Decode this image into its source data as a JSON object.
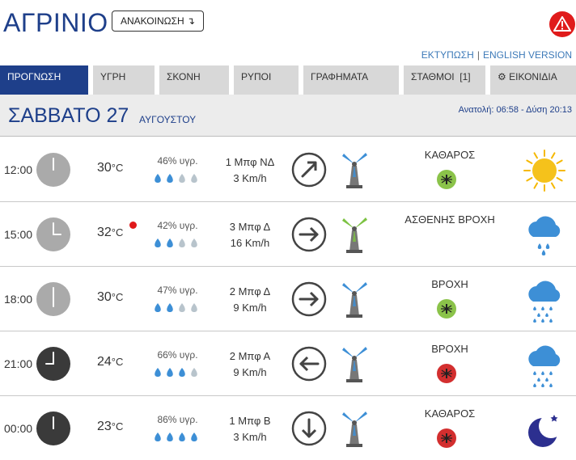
{
  "header": {
    "city": "ΑΓΡΙΝΙΟ",
    "announce_button": "ΑΝΑΚΟΙΝΩΣΗ ↴",
    "print_link": "ΕΚΤΥΠΩΣΗ",
    "link_separator": "|",
    "english_link": "ENGLISH VERSION"
  },
  "tabs": [
    {
      "label": "ΠΡΟΓΝΩΣΗ",
      "active": true
    },
    {
      "label": "ΥΓΡΗ",
      "active": false
    },
    {
      "label": "ΣΚΟΝΗ",
      "active": false
    },
    {
      "label": "ΡΥΠΟΙ",
      "active": false
    },
    {
      "label": "ΓΡΑΦΗΜΑΤΑ",
      "active": false
    },
    {
      "label": "ΣΤΑΘΜΟΙ  [1]",
      "active": false
    },
    {
      "label": "ΕΙΚΟΝΙΔΙΑ",
      "active": false,
      "icon": "gear-icon"
    }
  ],
  "day": {
    "name": "ΣΑΒΒΑΤΟ 27",
    "month": "ΑΥΓΟΥΣΤΟΥ",
    "sun": "Ανατολή: 06:58 - Δύση 20:13"
  },
  "colors": {
    "brand": "#1e3f8a",
    "tab_inactive": "#d8d8d8",
    "link": "#3d7ab8",
    "drop_filled": "#3d8fd6",
    "drop_empty": "#b8c4cc",
    "mosquito_low": "#8bc34a",
    "mosquito_high": "#d32f2f",
    "alert_red": "#e01b1b"
  },
  "forecast": [
    {
      "time": "12:00",
      "clock_hour": 12,
      "clock_dark": false,
      "temp": "30",
      "unit": "°C",
      "hot_dot": false,
      "humidity": "46% υγρ.",
      "drops_filled": 2,
      "wind_bft": "1 Μπφ ΝΔ",
      "wind_kmh": "3 Km/h",
      "wind_arrow": "arrow-up-right-icon",
      "turbine": "turbine-blue-icon",
      "condition": "ΚΑΘΑΡΟΣ",
      "mosquito": "low",
      "weather_icon": "sun-icon"
    },
    {
      "time": "15:00",
      "clock_hour": 3,
      "clock_dark": false,
      "temp": "32",
      "unit": "°C",
      "hot_dot": true,
      "humidity": "42% υγρ.",
      "drops_filled": 2,
      "wind_bft": "3 Μπφ Δ",
      "wind_kmh": "16 Km/h",
      "wind_arrow": "arrow-right-icon",
      "turbine": "turbine-green-icon",
      "condition": "ΑΣΘΕΝΗΣ ΒΡΟΧΗ",
      "mosquito": "none",
      "weather_icon": "light-rain-icon"
    },
    {
      "time": "18:00",
      "clock_hour": 6,
      "clock_dark": false,
      "temp": "30",
      "unit": "°C",
      "hot_dot": false,
      "humidity": "47% υγρ.",
      "drops_filled": 2,
      "wind_bft": "2 Μπφ Δ",
      "wind_kmh": "9 Km/h",
      "wind_arrow": "arrow-right-icon",
      "turbine": "turbine-blue-icon",
      "condition": "ΒΡΟΧΗ",
      "mosquito": "low",
      "weather_icon": "rain-icon"
    },
    {
      "time": "21:00",
      "clock_hour": 9,
      "clock_dark": true,
      "temp": "24",
      "unit": "°C",
      "hot_dot": false,
      "humidity": "66% υγρ.",
      "drops_filled": 3,
      "wind_bft": "2 Μπφ Α",
      "wind_kmh": "9 Km/h",
      "wind_arrow": "arrow-left-icon",
      "turbine": "turbine-blue-icon",
      "condition": "ΒΡΟΧΗ",
      "mosquito": "high",
      "weather_icon": "rain-icon"
    },
    {
      "time": "00:00",
      "clock_hour": 12,
      "clock_dark": true,
      "temp": "23",
      "unit": "°C",
      "hot_dot": false,
      "humidity": "86% υγρ.",
      "drops_filled": 4,
      "wind_bft": "1 Μπφ Β",
      "wind_kmh": "3 Km/h",
      "wind_arrow": "arrow-down-icon",
      "turbine": "turbine-blue-icon",
      "condition": "ΚΑΘΑΡΟΣ",
      "mosquito": "high",
      "weather_icon": "moon-icon"
    }
  ]
}
